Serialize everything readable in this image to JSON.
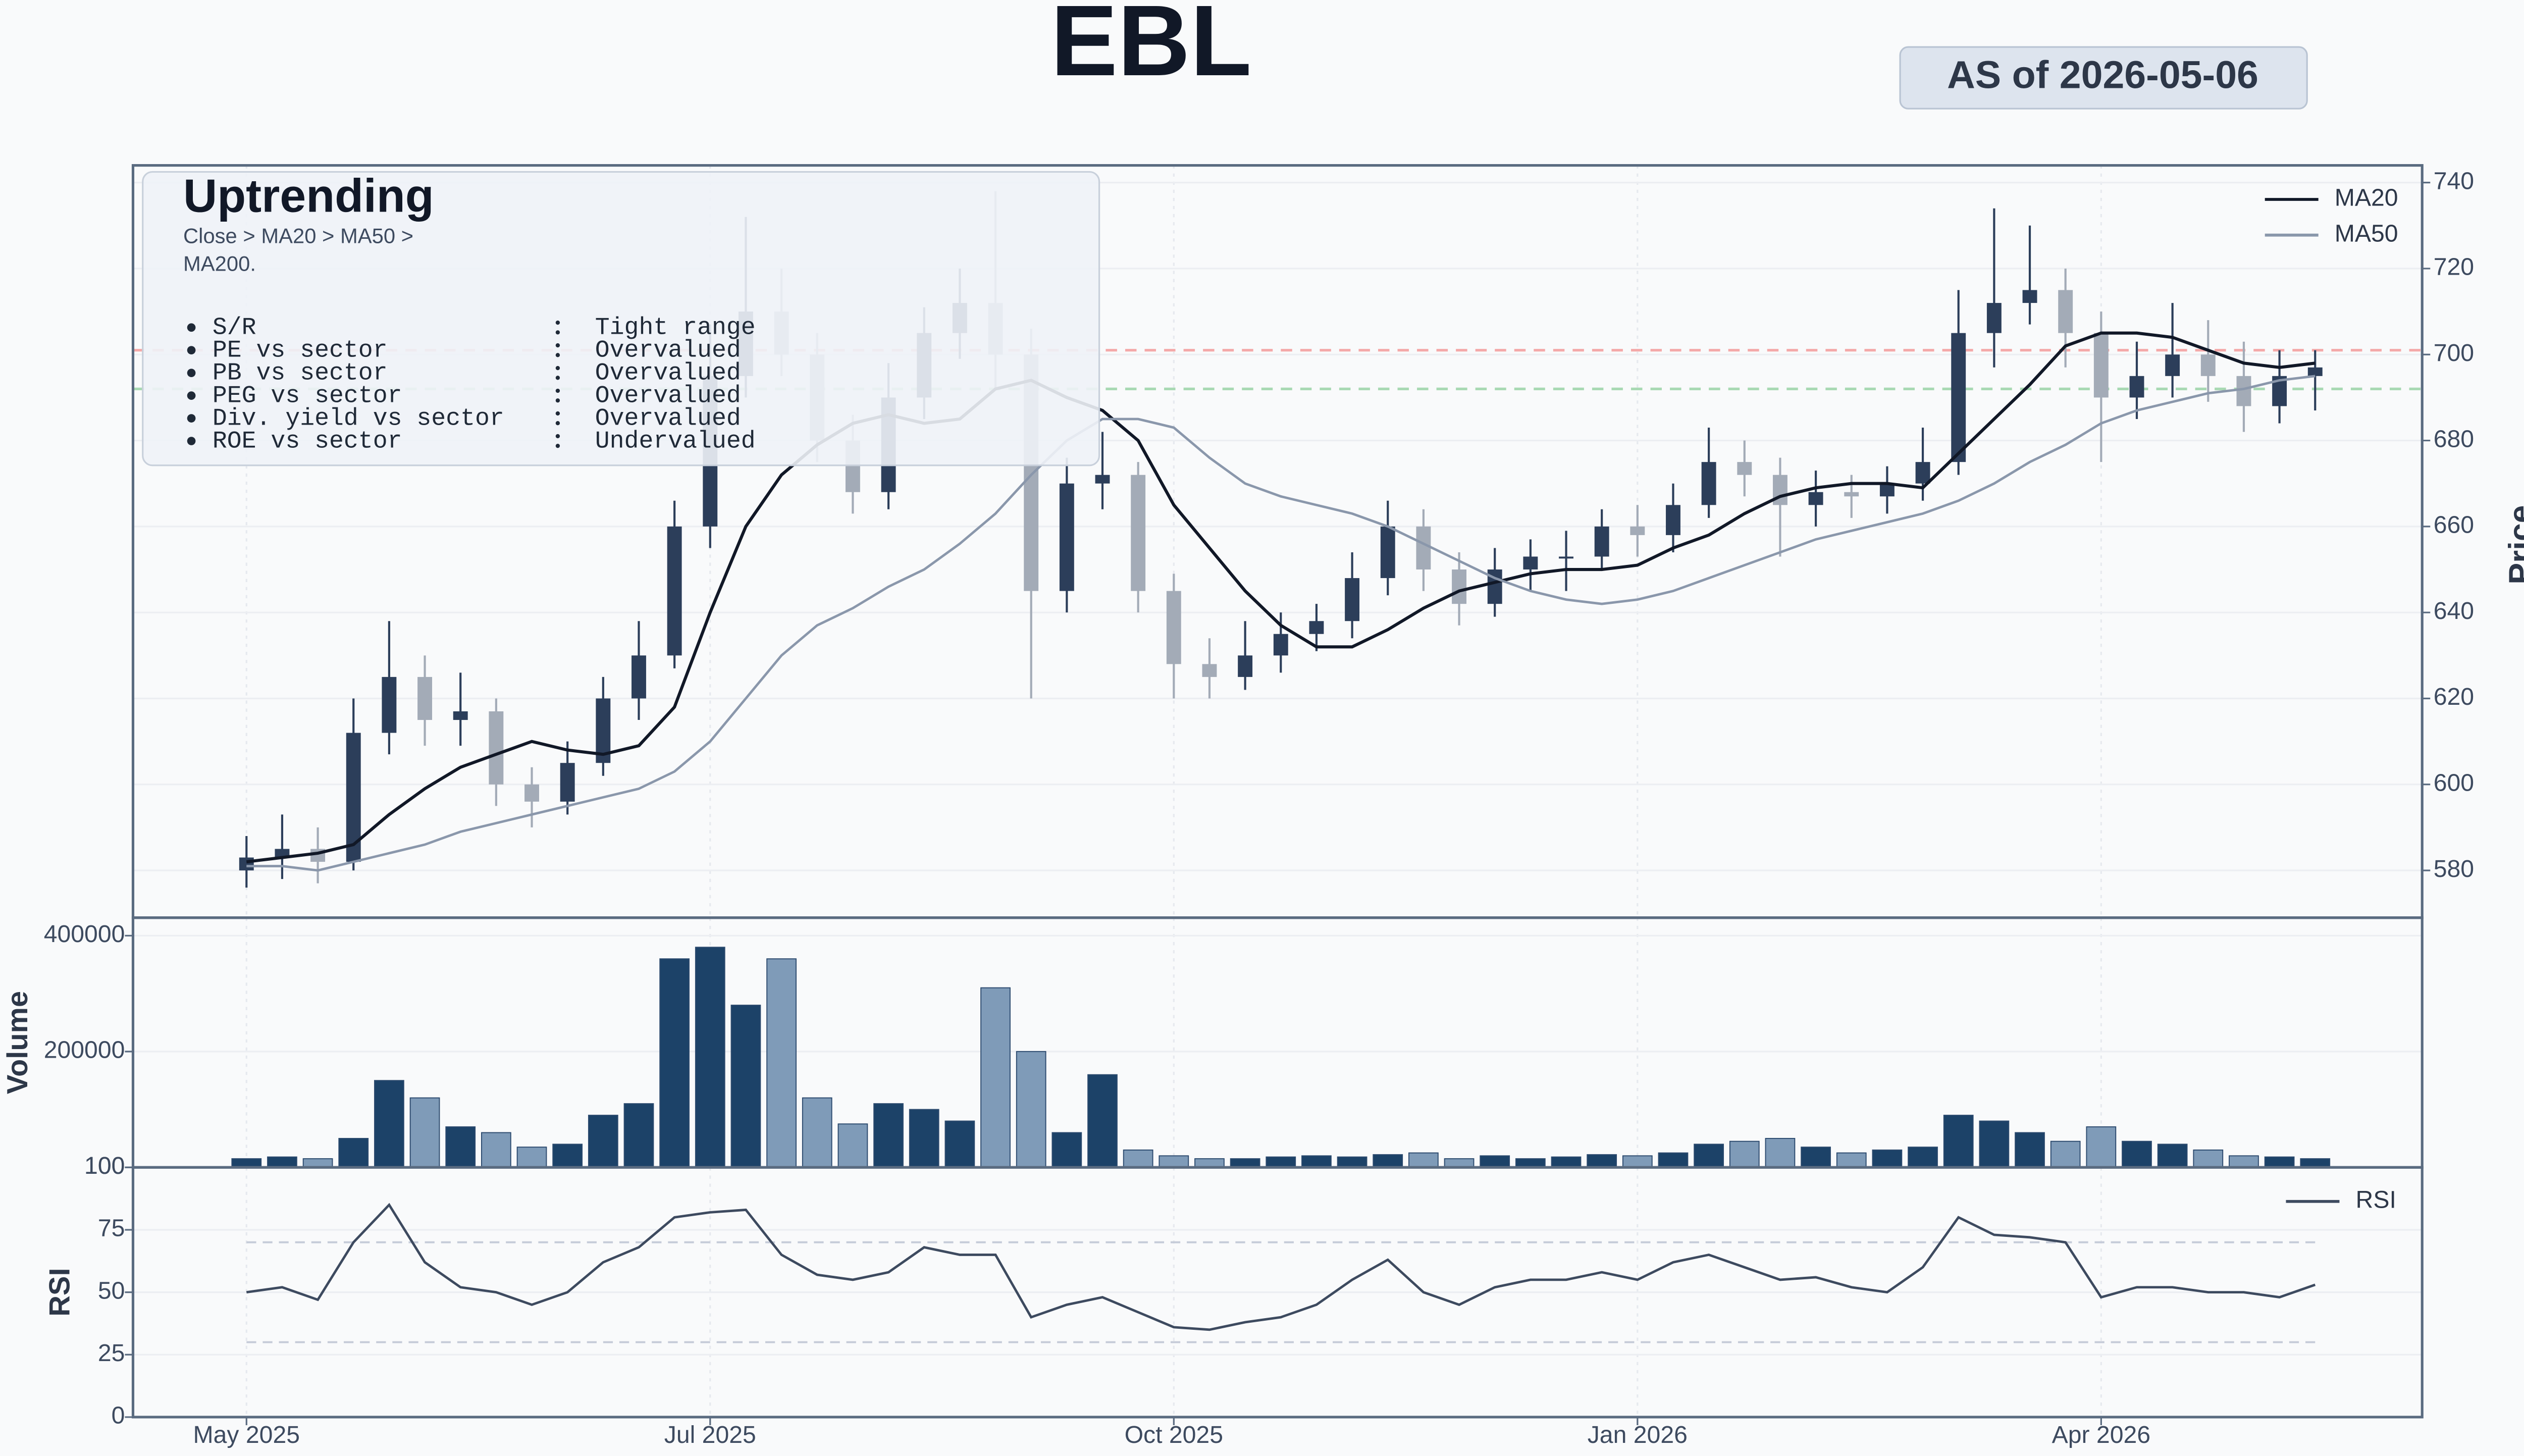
{
  "chart_data": [
    {
      "type": "candlestick",
      "title": "EBL",
      "badge": "AS of 2026-05-06",
      "x": [
        "2025-05-01",
        "2025-05-06",
        "2025-05-11",
        "2025-05-15",
        "2025-05-20",
        "2025-05-25",
        "2025-05-29",
        "2025-06-03",
        "2025-06-08",
        "2025-06-12",
        "2025-06-17",
        "2025-06-22",
        "2025-06-26",
        "2025-07-01",
        "2025-07-08",
        "2025-07-15",
        "2025-07-22",
        "2025-07-29",
        "2025-08-05",
        "2025-08-12",
        "2025-08-19",
        "2025-08-26",
        "2025-09-02",
        "2025-09-09",
        "2025-09-16",
        "2025-09-23",
        "2025-10-01",
        "2025-10-08",
        "2025-10-15",
        "2025-10-22",
        "2025-10-29",
        "2025-11-05",
        "2025-11-12",
        "2025-11-19",
        "2025-11-26",
        "2025-12-03",
        "2025-12-10",
        "2025-12-17",
        "2025-12-24",
        "2026-01-01",
        "2026-01-08",
        "2026-01-15",
        "2026-01-22",
        "2026-01-29",
        "2026-02-05",
        "2026-02-12",
        "2026-02-19",
        "2026-02-26",
        "2026-03-05",
        "2026-03-12",
        "2026-03-19",
        "2026-03-26",
        "2026-04-01",
        "2026-04-06",
        "2026-04-12",
        "2026-04-18",
        "2026-04-24",
        "2026-04-30",
        "2026-05-06"
      ],
      "open": [
        580,
        583,
        585,
        582,
        612,
        625,
        615,
        617,
        600,
        596,
        605,
        620,
        630,
        660,
        695,
        710,
        700,
        680,
        668,
        690,
        705,
        712,
        700,
        645,
        670,
        672,
        645,
        628,
        625,
        630,
        635,
        638,
        648,
        660,
        650,
        642,
        650,
        653,
        653,
        660,
        658,
        665,
        675,
        672,
        665,
        668,
        667,
        670,
        675,
        705,
        712,
        715,
        705,
        690,
        695,
        700,
        695,
        688,
        695
      ],
      "high": [
        588,
        593,
        590,
        620,
        638,
        630,
        626,
        620,
        604,
        610,
        625,
        638,
        666,
        707,
        732,
        720,
        705,
        686,
        698,
        711,
        720,
        738,
        706,
        676,
        682,
        675,
        649,
        634,
        638,
        640,
        642,
        654,
        666,
        664,
        654,
        655,
        657,
        659,
        664,
        665,
        670,
        683,
        680,
        676,
        673,
        672,
        674,
        683,
        715,
        734,
        730,
        720,
        710,
        703,
        712,
        708,
        703,
        701,
        701
      ],
      "low": [
        576,
        578,
        577,
        580,
        607,
        609,
        609,
        595,
        590,
        593,
        602,
        615,
        627,
        655,
        690,
        695,
        675,
        663,
        664,
        685,
        699,
        692,
        620,
        640,
        664,
        640,
        620,
        620,
        622,
        626,
        631,
        634,
        644,
        645,
        637,
        639,
        645,
        645,
        650,
        653,
        654,
        662,
        667,
        653,
        660,
        662,
        663,
        666,
        672,
        697,
        707,
        697,
        675,
        685,
        690,
        689,
        682,
        684,
        687
      ],
      "close": [
        583,
        585,
        582,
        612,
        625,
        615,
        617,
        600,
        596,
        605,
        620,
        630,
        660,
        695,
        710,
        700,
        680,
        668,
        690,
        705,
        712,
        700,
        645,
        670,
        672,
        645,
        628,
        625,
        630,
        635,
        638,
        648,
        660,
        650,
        642,
        650,
        653,
        653,
        660,
        658,
        665,
        675,
        672,
        665,
        668,
        667,
        670,
        675,
        705,
        712,
        715,
        705,
        690,
        695,
        700,
        695,
        688,
        695,
        697
      ],
      "up_color": "#2c3e5a",
      "down_color": "#a3abb7",
      "series": [
        {
          "name": "MA20",
          "color": "#111827",
          "values": [
            582,
            583,
            584,
            586,
            593,
            599,
            604,
            607,
            610,
            608,
            607,
            609,
            618,
            640,
            660,
            672,
            679,
            684,
            686,
            684,
            685,
            692,
            694,
            690,
            687,
            680,
            665,
            655,
            645,
            637,
            632,
            632,
            636,
            641,
            645,
            647,
            649,
            650,
            650,
            651,
            655,
            658,
            663,
            667,
            669,
            670,
            670,
            669,
            677,
            685,
            693,
            702,
            705,
            705,
            704,
            701,
            698,
            697,
            698
          ]
        },
        {
          "name": "MA50",
          "color": "#8a97ab",
          "values": [
            581,
            581,
            580,
            582,
            584,
            586,
            589,
            591,
            593,
            595,
            597,
            599,
            603,
            610,
            620,
            630,
            637,
            641,
            646,
            650,
            656,
            663,
            672,
            680,
            685,
            685,
            683,
            676,
            670,
            667,
            665,
            663,
            660,
            656,
            652,
            648,
            645,
            643,
            642,
            643,
            645,
            648,
            651,
            654,
            657,
            659,
            661,
            663,
            666,
            670,
            675,
            679,
            684,
            687,
            689,
            691,
            692,
            694,
            695
          ]
        }
      ],
      "ylabel": "Price",
      "ylim": [
        569,
        744
      ],
      "yticks": [
        580,
        600,
        620,
        640,
        660,
        680,
        700,
        720,
        740
      ],
      "xticks": [
        {
          "value": "2025-05-01",
          "label": "May 2025"
        },
        {
          "value": "2025-07-01",
          "label": "Jul 2025"
        },
        {
          "value": "2025-10-01",
          "label": "Oct 2025"
        },
        {
          "value": "2026-01-01",
          "label": "Jan 2026"
        },
        {
          "value": "2026-04-01",
          "label": "Apr 2026"
        }
      ],
      "grid": true,
      "legend": "upper right",
      "resistance": {
        "value": 701,
        "color": "#f4a9a9"
      },
      "support": {
        "value": 692,
        "color": "#a9d9b3"
      },
      "annotation": {
        "title": "Uptrending",
        "text": "Close > MA20 > MA50 > MA200.",
        "items": [
          {
            "label": "S/R",
            "value": "Tight range"
          },
          {
            "label": "PE vs sector",
            "value": "Overvalued"
          },
          {
            "label": "PB vs sector",
            "value": "Overvalued"
          },
          {
            "label": "PEG vs sector",
            "value": "Overvalued"
          },
          {
            "label": "Div. yield vs sector",
            "value": "Overvalued"
          },
          {
            "label": "ROE vs sector",
            "value": "Undervalued"
          }
        ]
      }
    },
    {
      "type": "bar",
      "ylabel": "Volume",
      "values": [
        15000,
        18000,
        15000,
        50000,
        150000,
        120000,
        70000,
        60000,
        35000,
        40000,
        90000,
        110000,
        360000,
        380000,
        280000,
        360000,
        120000,
        75000,
        110000,
        100000,
        80000,
        310000,
        200000,
        60000,
        160000,
        30000,
        20000,
        15000,
        15000,
        18000,
        20000,
        18000,
        22000,
        25000,
        15000,
        20000,
        15000,
        18000,
        22000,
        20000,
        25000,
        40000,
        45000,
        50000,
        35000,
        25000,
        30000,
        35000,
        90000,
        80000,
        60000,
        45000,
        70000,
        45000,
        40000,
        30000,
        20000,
        18000,
        15000
      ],
      "up_color": "#1c4268",
      "down_color": "#7f9bb8",
      "ylim": [
        0,
        431000
      ],
      "yticks": [
        100,
        200000,
        400000
      ],
      "grid": true
    },
    {
      "type": "line",
      "ylabel": "RSI",
      "series": [
        {
          "name": "RSI",
          "color": "#3d4a5f",
          "values": [
            50,
            52,
            47,
            70,
            85,
            62,
            52,
            50,
            45,
            50,
            62,
            68,
            80,
            82,
            83,
            65,
            57,
            55,
            58,
            68,
            65,
            65,
            40,
            45,
            48,
            42,
            36,
            35,
            38,
            40,
            45,
            55,
            63,
            50,
            45,
            52,
            55,
            55,
            58,
            55,
            62,
            65,
            60,
            55,
            56,
            52,
            50,
            60,
            80,
            73,
            72,
            70,
            48,
            52,
            52,
            50,
            50,
            48,
            53
          ]
        }
      ],
      "bands": [
        30,
        70
      ],
      "band_color": "#c5cbd8",
      "ylim": [
        0,
        100
      ],
      "yticks": [
        0,
        25,
        50,
        75,
        100
      ],
      "grid": true,
      "legend": "upper right"
    }
  ]
}
